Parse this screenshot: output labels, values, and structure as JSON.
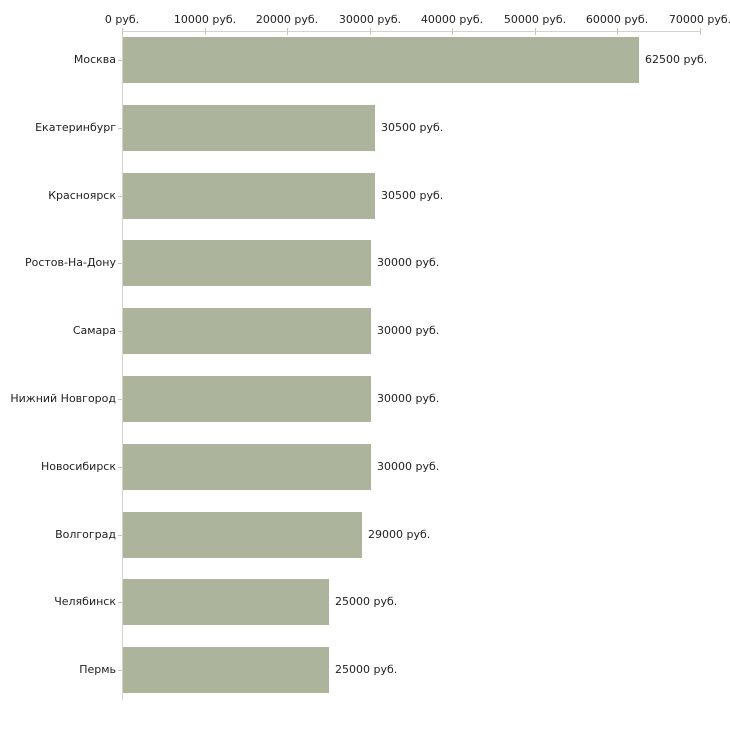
{
  "chart_data": {
    "type": "bar",
    "orientation": "horizontal",
    "title": "",
    "categories": [
      "Москва",
      "Екатеринбург",
      "Красноярск",
      "Ростов-На-Дону",
      "Самара",
      "Нижний Новгород",
      "Новосибирск",
      "Волгоград",
      "Челябинск",
      "Пермь"
    ],
    "values": [
      62500,
      30500,
      30500,
      30000,
      30000,
      30000,
      30000,
      29000,
      25000,
      25000
    ],
    "value_labels": [
      "62500 руб.",
      "30500 руб.",
      "30500 руб.",
      "30000 руб.",
      "30000 руб.",
      "30000 руб.",
      "30000 руб.",
      "29000 руб.",
      "25000 руб.",
      "25000 руб."
    ],
    "x_tick_values": [
      0,
      10000,
      20000,
      30000,
      40000,
      50000,
      60000,
      70000
    ],
    "x_tick_labels": [
      "0 руб.",
      "10000 руб.",
      "20000 руб.",
      "30000 руб.",
      "40000 руб.",
      "50000 руб.",
      "60000 руб.",
      "70000 руб."
    ],
    "xlim": [
      0,
      70000
    ],
    "unit": "руб.",
    "grid": false,
    "legend_position": "none",
    "colors": {
      "bar": "#acb49b",
      "axis_line": "#d4d4cd",
      "tick": "#c9c9a9",
      "text": "#1f1f1f",
      "background": "#ffffff"
    }
  }
}
